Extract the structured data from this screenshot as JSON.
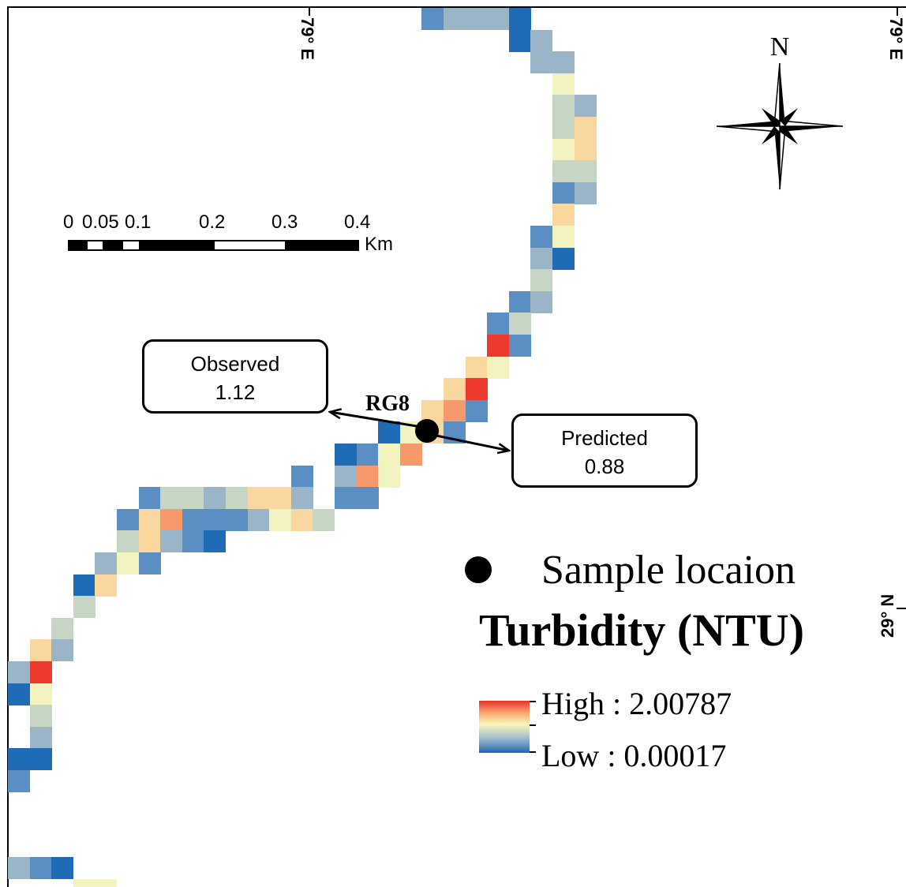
{
  "map": {
    "title": "",
    "graticule": {
      "lon_labels": [
        "79° E",
        "79° E"
      ],
      "lat_labels": [
        "29° N"
      ]
    },
    "north_arrow": {
      "label": "N"
    },
    "scale_bar": {
      "ticks": [
        "0",
        "0.05",
        "0.1",
        "0.2",
        "0.3",
        "0.4"
      ],
      "unit": "Km"
    },
    "site": {
      "name": "RG8",
      "observed_label": "Observed",
      "observed_value": "1.12",
      "predicted_label": "Predicted",
      "predicted_value": "0.88"
    },
    "legend": {
      "marker_label": "Sample locaion",
      "title": "Turbidity (NTU)",
      "high_label": "High : 2.00787",
      "low_label": "Low : 0.00017",
      "ramp_colors": [
        "#e8302a",
        "#f7a36c",
        "#fbf5b9",
        "#9fbccd",
        "#2266b0"
      ]
    }
  }
}
